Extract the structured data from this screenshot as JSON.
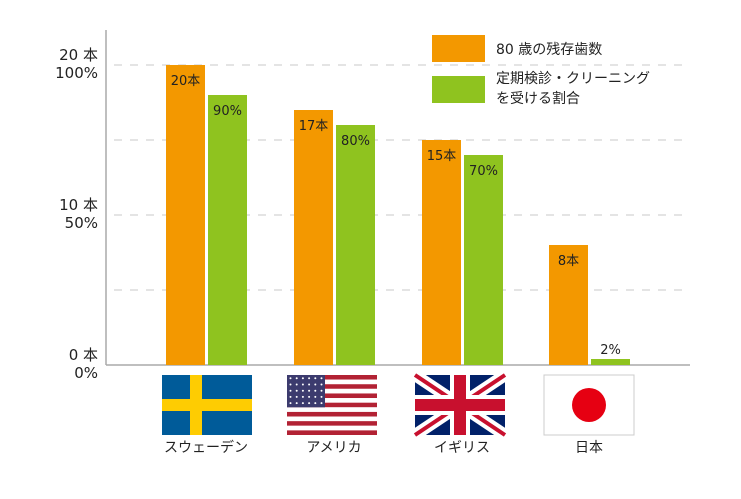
{
  "chart_data": {
    "type": "bar",
    "title": "",
    "categories": [
      "スウェーデン",
      "アメリカ",
      "イギリス",
      "日本"
    ],
    "series": [
      {
        "name": "80 歳の残存歯数",
        "values": [
          20,
          17,
          15,
          8
        ],
        "labels": [
          "20本",
          "17本",
          "15本",
          "8本"
        ],
        "unit_max": 20,
        "color": "#f39800"
      },
      {
        "name_lines": [
          "定期検診・クリーニング",
          "を受ける割合"
        ],
        "name": "定期検診・クリーニングを受ける割合",
        "values": [
          90,
          80,
          70,
          2
        ],
        "labels": [
          "90%",
          "80%",
          "70%",
          "2%"
        ],
        "unit_max": 100,
        "color": "#8fc31f"
      }
    ],
    "yticks": [
      {
        "fraction": 1.0,
        "lines": [
          "20 本",
          "100%"
        ]
      },
      {
        "fraction": 0.5,
        "lines": [
          "10 本",
          "50%"
        ]
      },
      {
        "fraction": 0.0,
        "lines": [
          "0 本",
          "0%"
        ]
      }
    ],
    "grid_fractions": [
      0.25,
      0.5,
      0.75,
      1.0
    ],
    "grid": true,
    "legend_position": "top-right",
    "flags": [
      "sweden",
      "usa",
      "uk",
      "japan"
    ]
  }
}
